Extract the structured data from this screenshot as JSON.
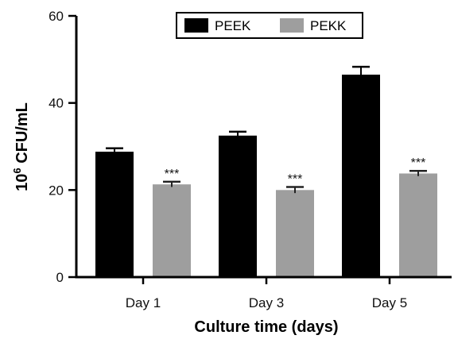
{
  "chart_data": {
    "type": "bar",
    "categories": [
      "Day 1",
      "Day 3",
      "Day 5"
    ],
    "series": [
      {
        "name": "PEEK",
        "values": [
          28.8,
          32.5,
          46.5
        ],
        "errors": [
          0.8,
          0.9,
          1.8
        ],
        "color": "#000000"
      },
      {
        "name": "PEKK",
        "values": [
          21.3,
          20.0,
          23.8
        ],
        "errors": [
          0.6,
          0.7,
          0.6
        ],
        "color": "#9e9e9e"
      }
    ],
    "annotations": [
      {
        "series": "PEKK",
        "category": "Day 1",
        "text": "***"
      },
      {
        "series": "PEKK",
        "category": "Day 3",
        "text": "***"
      },
      {
        "series": "PEKK",
        "category": "Day 5",
        "text": "***"
      }
    ],
    "yticks": [
      0,
      20,
      40,
      60
    ],
    "ylim": [
      0,
      60
    ],
    "ylabel_base": "10",
    "ylabel_sup": "6",
    "ylabel_rest": " CFU/mL",
    "xlabel": "Culture time (days)",
    "legend_position": "top-center",
    "grid": false
  }
}
